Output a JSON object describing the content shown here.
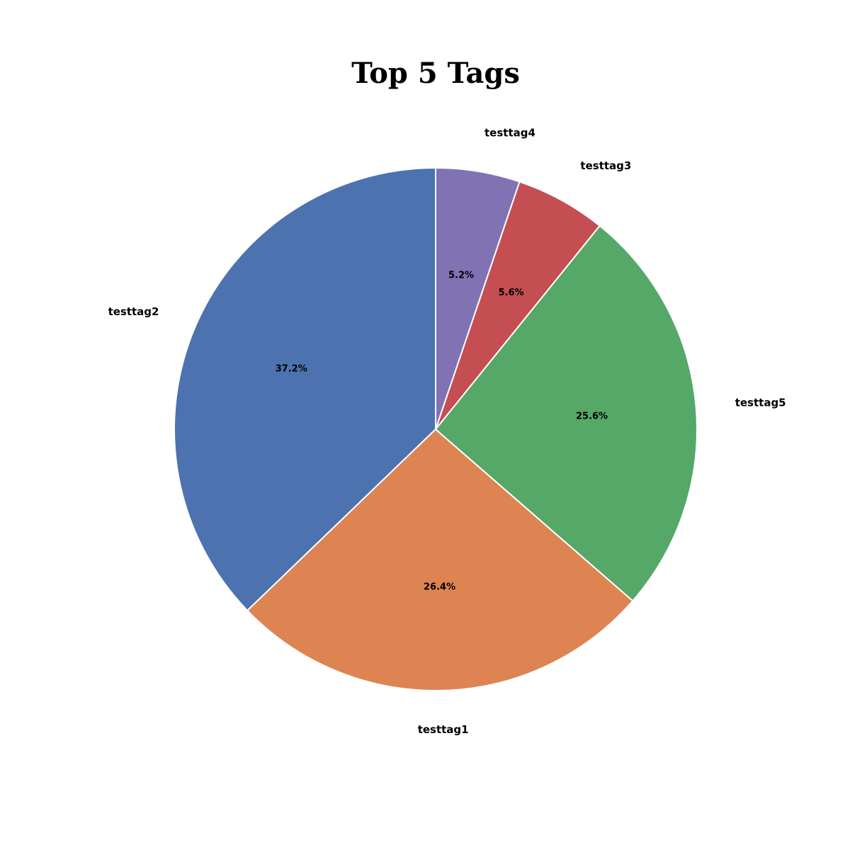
{
  "chart_data": {
    "type": "pie",
    "title": "Top 5 Tags",
    "start_angle_deg": 90,
    "direction": "counterclockwise",
    "slices": [
      {
        "label": "testtag2",
        "value": 37.2,
        "pct_text": "37.2%",
        "color": "#4c72b0"
      },
      {
        "label": "testtag1",
        "value": 26.4,
        "pct_text": "26.4%",
        "color": "#dd8452"
      },
      {
        "label": "testtag5",
        "value": 25.6,
        "pct_text": "25.6%",
        "color": "#55a868"
      },
      {
        "label": "testtag3",
        "value": 5.6,
        "pct_text": "5.6%",
        "color": "#c44e52"
      },
      {
        "label": "testtag4",
        "value": 5.2,
        "pct_text": "5.2%",
        "color": "#8172b3"
      }
    ]
  }
}
